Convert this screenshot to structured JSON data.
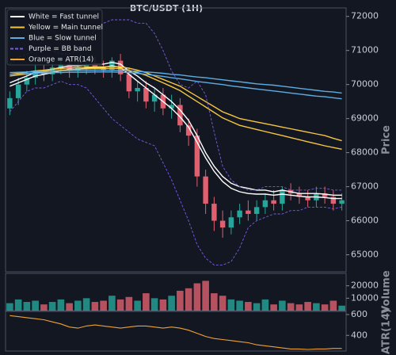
{
  "chart_data": [
    {
      "type": "candlestick",
      "title": "BTC/USDT (1H)",
      "ylabel": "Price",
      "up_color": "#26a69a",
      "down_color": "#e0606f",
      "open": [
        69300,
        69600,
        70000,
        70200,
        70400,
        70300,
        70500,
        70600,
        70400,
        70500,
        70600,
        70500,
        70400,
        70700,
        70300,
        69800,
        69900,
        69500,
        69700,
        69300,
        69400,
        68800,
        68500,
        67300,
        66500,
        66000,
        65800,
        66100,
        66300,
        66200,
        66400,
        66600,
        66500,
        66900,
        66800,
        66700,
        66600,
        66800,
        66700,
        66500
      ],
      "high": [
        69800,
        70200,
        70400,
        70600,
        70600,
        70700,
        70800,
        70800,
        70700,
        70700,
        70800,
        70700,
        70800,
        70900,
        70500,
        70100,
        70100,
        69900,
        69900,
        69700,
        69600,
        69000,
        68700,
        67500,
        66700,
        66300,
        66300,
        66500,
        66600,
        66600,
        66800,
        66900,
        67000,
        67100,
        67000,
        66900,
        67000,
        67000,
        66900,
        66800
      ],
      "low": [
        69100,
        69400,
        69800,
        70000,
        70100,
        70100,
        70300,
        70200,
        70200,
        70300,
        70300,
        70200,
        70200,
        70100,
        69600,
        69500,
        69300,
        69200,
        69100,
        69000,
        68600,
        68200,
        67000,
        66200,
        65700,
        65500,
        65600,
        65900,
        66000,
        66000,
        66200,
        66300,
        66300,
        66600,
        66500,
        66400,
        66400,
        66500,
        66300,
        66300
      ],
      "close": [
        69600,
        70000,
        70200,
        70400,
        70300,
        70500,
        70600,
        70400,
        70500,
        70600,
        70500,
        70400,
        70700,
        70300,
        69800,
        69900,
        69500,
        69700,
        69300,
        69400,
        68800,
        68500,
        67300,
        66500,
        66000,
        65800,
        66100,
        66300,
        66200,
        66400,
        66600,
        66500,
        66900,
        66800,
        66700,
        66600,
        66800,
        66700,
        66500,
        66600
      ],
      "series": [
        {
          "name": "White = Fast tunnel",
          "color": "#ffffff",
          "dashed": false,
          "upper": [
            70050,
            70150,
            70250,
            70350,
            70400,
            70450,
            70500,
            70550,
            70550,
            70580,
            70600,
            70600,
            70650,
            70600,
            70400,
            70250,
            70050,
            69900,
            69700,
            69500,
            69250,
            68950,
            68500,
            68000,
            67600,
            67300,
            67100,
            67000,
            66950,
            66900,
            66900,
            66850,
            66900,
            66850,
            66800,
            66800,
            66800,
            66780,
            66750,
            66750
          ],
          "lower": [
            69950,
            70050,
            70150,
            70250,
            70300,
            70350,
            70400,
            70450,
            70450,
            70480,
            70500,
            70500,
            70550,
            70500,
            70300,
            70100,
            69900,
            69700,
            69500,
            69300,
            69050,
            68750,
            68300,
            67850,
            67450,
            67150,
            66950,
            66850,
            66800,
            66780,
            66780,
            66750,
            66780,
            66750,
            66720,
            66700,
            66700,
            66680,
            66650,
            66650
          ]
        },
        {
          "name": "Yellow = Main tunnel",
          "color": "#f5c542",
          "dashed": false,
          "upper": [
            70300,
            70330,
            70360,
            70400,
            70420,
            70450,
            70470,
            70490,
            70500,
            70510,
            70520,
            70520,
            70530,
            70520,
            70480,
            70420,
            70350,
            70250,
            70150,
            70050,
            69950,
            69800,
            69650,
            69500,
            69350,
            69200,
            69100,
            69000,
            68950,
            68900,
            68850,
            68800,
            68750,
            68700,
            68650,
            68600,
            68550,
            68500,
            68420,
            68350
          ],
          "lower": [
            70250,
            70280,
            70310,
            70350,
            70370,
            70400,
            70420,
            70440,
            70450,
            70460,
            70470,
            70470,
            70480,
            70470,
            70420,
            70350,
            70270,
            70160,
            70050,
            69940,
            69820,
            69660,
            69500,
            69340,
            69180,
            69020,
            68910,
            68800,
            68740,
            68680,
            68620,
            68560,
            68500,
            68440,
            68380,
            68320,
            68260,
            68200,
            68150,
            68100
          ]
        },
        {
          "name": "Blue = Slow tunnel",
          "color": "#5dade2",
          "dashed": false,
          "upper": [
            70350,
            70360,
            70370,
            70380,
            70390,
            70400,
            70400,
            70410,
            70410,
            70410,
            70420,
            70420,
            70420,
            70410,
            70400,
            70390,
            70370,
            70350,
            70330,
            70300,
            70280,
            70250,
            70220,
            70200,
            70170,
            70140,
            70110,
            70080,
            70050,
            70020,
            70000,
            69980,
            69950,
            69920,
            69890,
            69860,
            69830,
            69800,
            69780,
            69750
          ],
          "lower": [
            70300,
            70310,
            70320,
            70330,
            70340,
            70350,
            70350,
            70360,
            70360,
            70360,
            70370,
            70370,
            70370,
            70360,
            70350,
            70330,
            70300,
            70270,
            70240,
            70200,
            70170,
            70130,
            70090,
            70060,
            70030,
            70000,
            69960,
            69930,
            69900,
            69870,
            69840,
            69810,
            69780,
            69750,
            69720,
            69690,
            69660,
            69640,
            69610,
            69580
          ]
        },
        {
          "name": "Purple = BB band",
          "color": "#7b5ce6",
          "dashed": true,
          "upper": [
            70600,
            70800,
            70900,
            71000,
            71000,
            71000,
            70900,
            70900,
            71000,
            71300,
            71600,
            71800,
            71900,
            71900,
            71900,
            71800,
            71800,
            71500,
            71000,
            70400,
            70000,
            69900,
            70100,
            69700,
            68600,
            67600,
            67200,
            67000,
            66900,
            66900,
            67000,
            67000,
            67000,
            66900,
            66900,
            66900,
            66950,
            66950,
            66900,
            66900
          ],
          "lower": [
            69200,
            69500,
            69800,
            69900,
            69900,
            70000,
            70100,
            70000,
            70000,
            69900,
            69600,
            69300,
            69000,
            68800,
            68600,
            68400,
            68300,
            68200,
            67700,
            67200,
            66600,
            66000,
            65300,
            64900,
            64700,
            64700,
            64800,
            65200,
            65800,
            66000,
            66100,
            66200,
            66200,
            66300,
            66300,
            66400,
            66400,
            66400,
            66350,
            66400
          ]
        }
      ],
      "ylim": [
        64500,
        72250
      ],
      "yticks": [
        65000,
        66000,
        67000,
        68000,
        69000,
        70000,
        71000,
        72000
      ]
    },
    {
      "type": "bar",
      "ylabel": "Volume",
      "values": [
        6000,
        9000,
        7000,
        8000,
        5000,
        7000,
        9000,
        6000,
        8000,
        10000,
        7000,
        8000,
        12000,
        9000,
        11000,
        8000,
        14000,
        10000,
        9000,
        12000,
        16000,
        18000,
        22000,
        24000,
        14000,
        12000,
        9000,
        8000,
        7000,
        6000,
        9000,
        5000,
        8000,
        6000,
        5000,
        7000,
        6000,
        5000,
        8000,
        4000
      ],
      "ylim": [
        0,
        30000
      ],
      "yticks": [
        10000,
        20000
      ]
    },
    {
      "type": "line",
      "ylabel": "ATR(14)",
      "series": [
        {
          "name": "Orange = ATR(14)",
          "color": "#f0a030",
          "values": [
            590,
            580,
            570,
            560,
            550,
            530,
            510,
            480,
            470,
            490,
            500,
            490,
            480,
            470,
            480,
            490,
            490,
            480,
            470,
            480,
            470,
            450,
            420,
            390,
            370,
            360,
            350,
            340,
            330,
            310,
            300,
            290,
            280,
            270,
            270,
            265,
            270,
            270,
            275,
            275
          ]
        }
      ],
      "ylim": [
        250,
        630
      ],
      "yticks": [
        400,
        600
      ]
    }
  ]
}
